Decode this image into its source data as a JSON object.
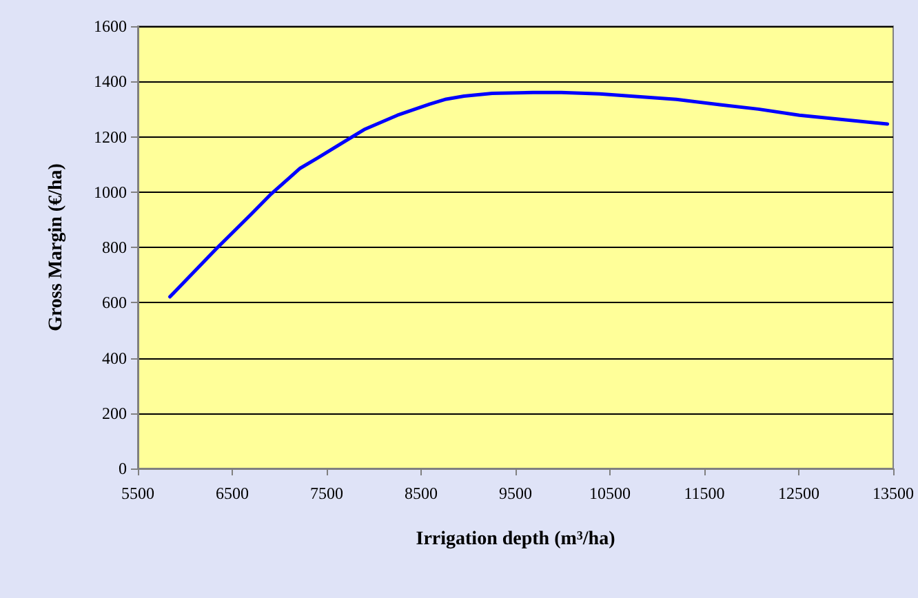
{
  "chart_data": {
    "type": "line",
    "xlabel": "Irrigation depth (m$^{3}$/ha)",
    "ylabel": "Gross Margin (€/ha)",
    "x": [
      5840,
      6335,
      6698,
      6899,
      7219,
      7403,
      7897,
      8250,
      8591,
      8765,
      8955,
      9253,
      9687,
      9985,
      10391,
      11204,
      11665,
      12072,
      12506,
      13439
    ],
    "series": [
      {
        "color": "#0000ff",
        "values": [
          621,
          796,
          919,
          989,
          1086,
          1123,
          1226,
          1278,
          1318,
          1336,
          1347,
          1357,
          1360,
          1360,
          1355,
          1335,
          1316,
          1300,
          1278,
          1246
        ]
      }
    ],
    "xlim": [
      5500,
      13500
    ],
    "xticks": [
      5500,
      6500,
      7500,
      8500,
      9500,
      10500,
      11500,
      12500,
      13500
    ],
    "ylim": [
      0,
      1600
    ],
    "yticks": [
      0,
      200,
      400,
      600,
      800,
      1000,
      1200,
      1400,
      1600
    ],
    "grid": "y",
    "marker": "none",
    "line_style": "solid"
  }
}
